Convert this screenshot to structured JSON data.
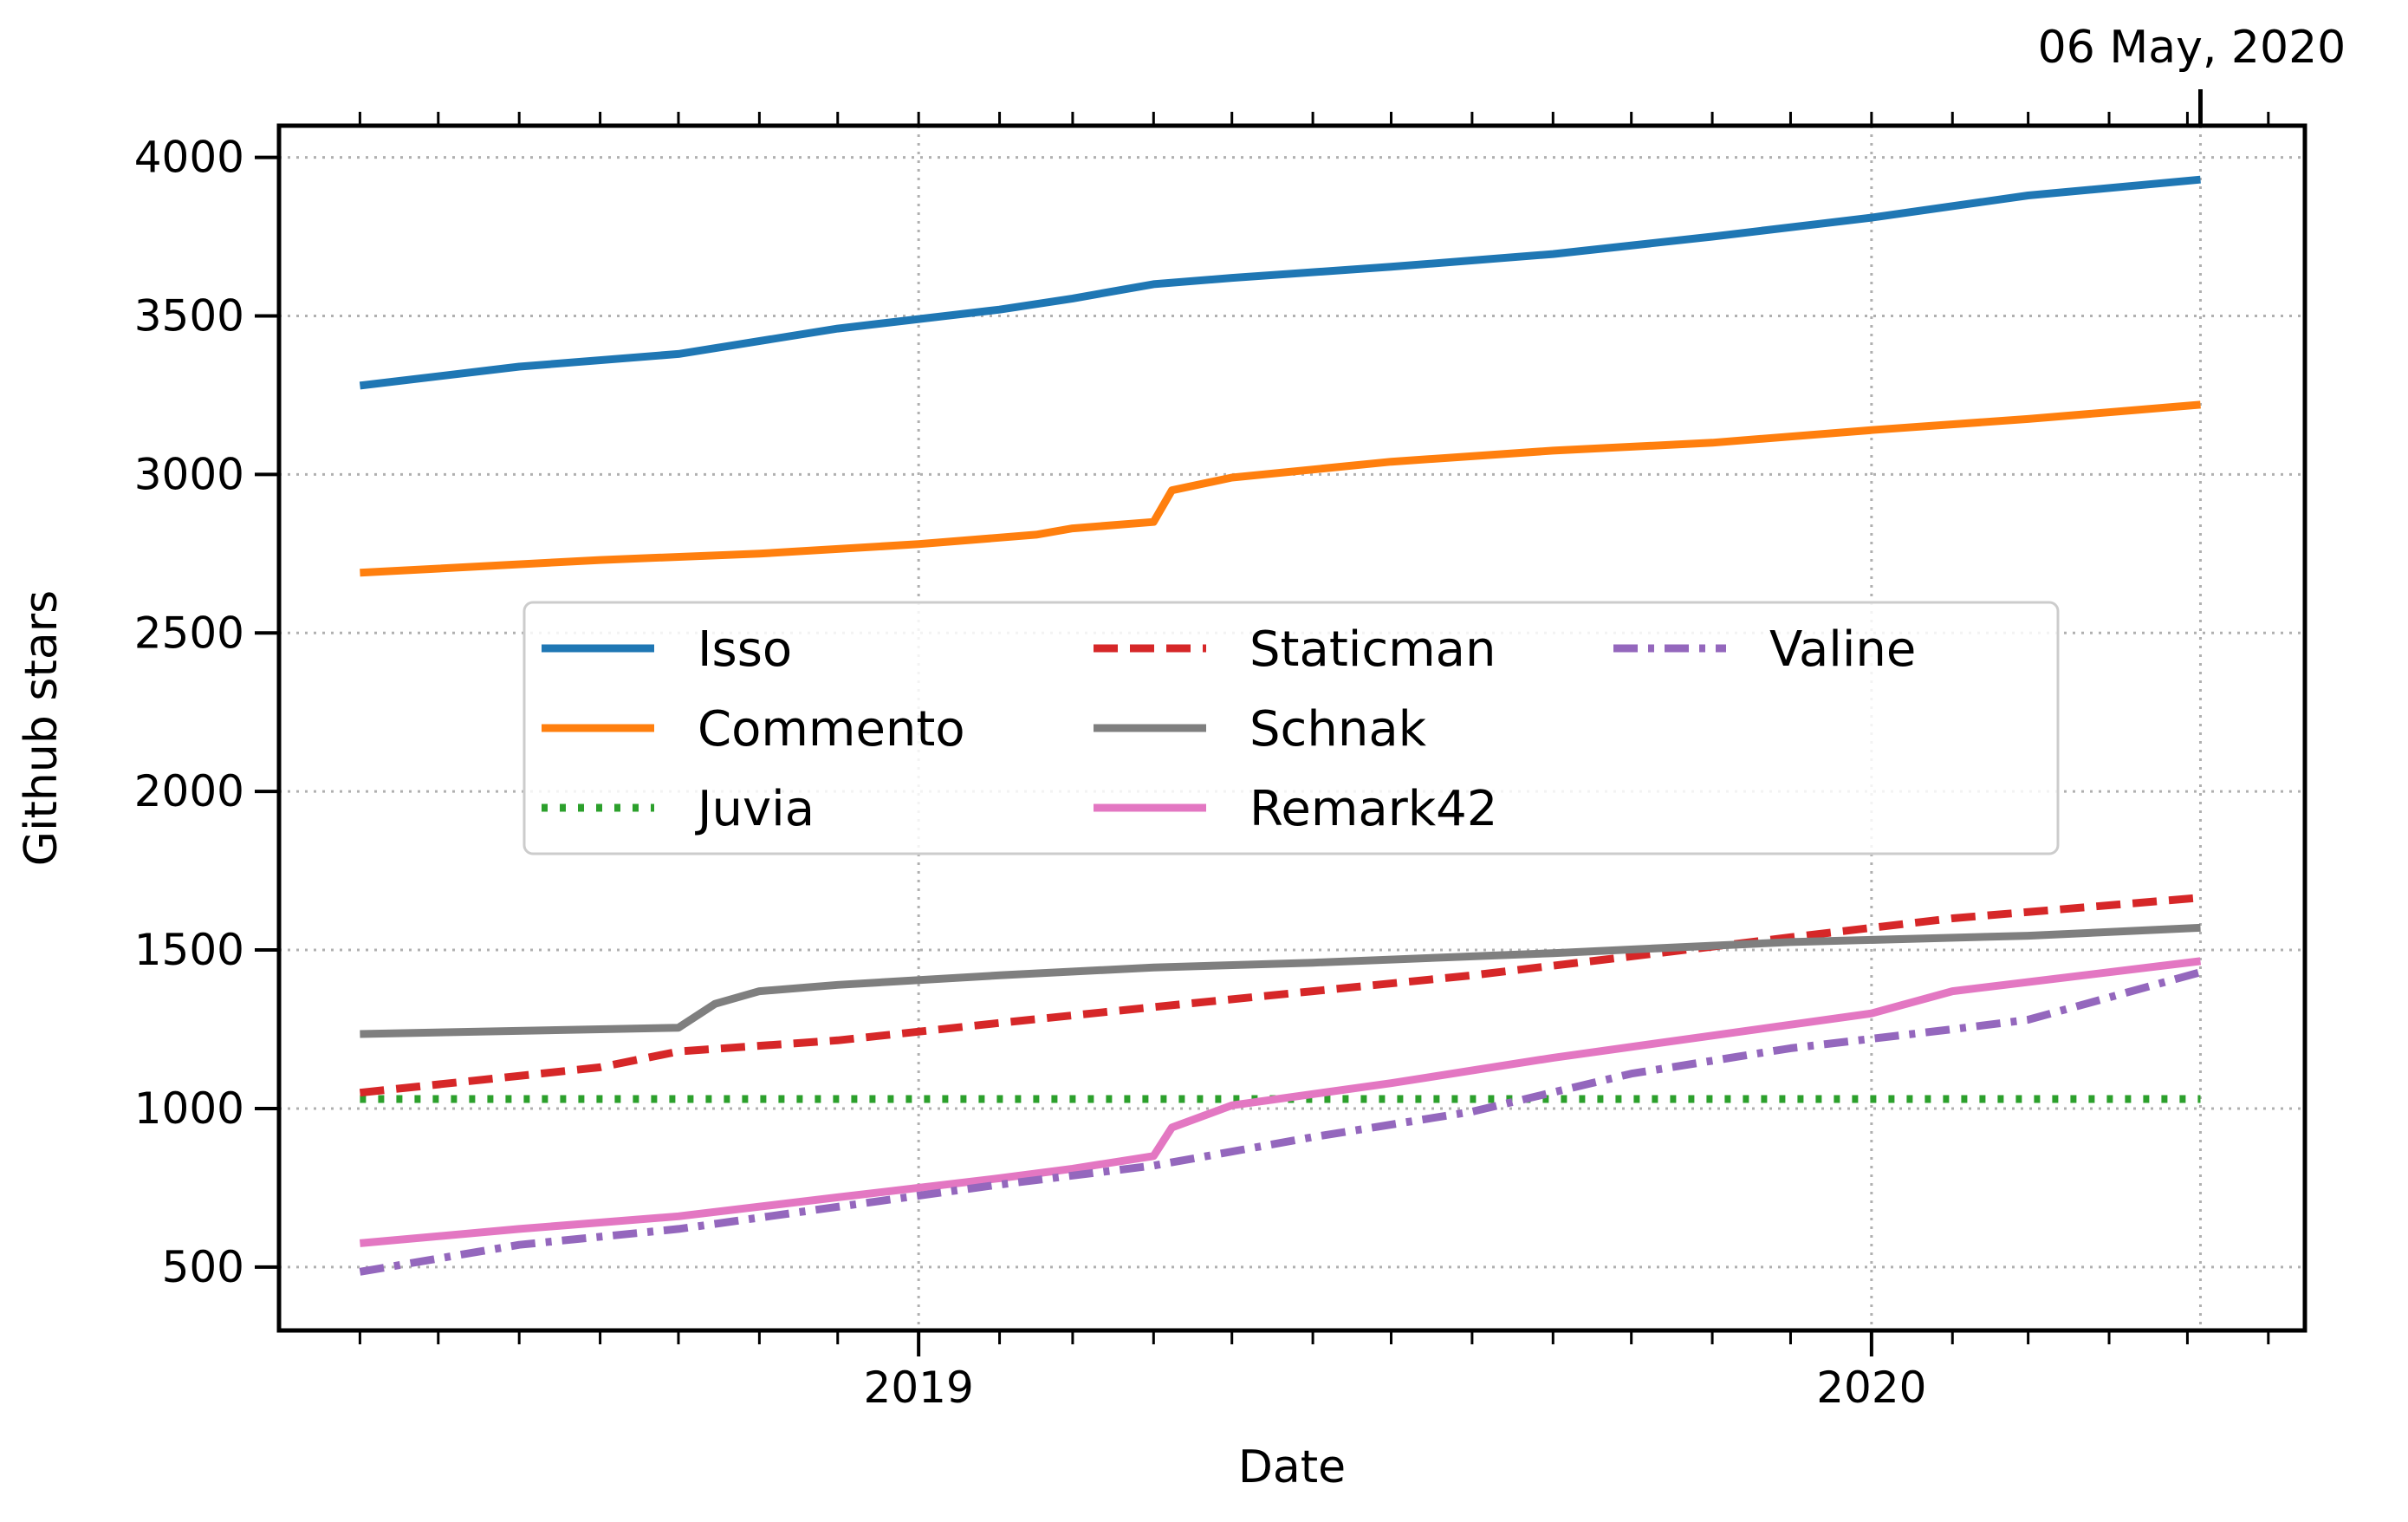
{
  "chart_data": {
    "type": "line",
    "xlabel": "Date",
    "ylabel": "Github stars",
    "annotation": "06 May, 2020",
    "annotation_date": "2020-05-06",
    "xlim": [
      "2018-05-01",
      "2020-06-15"
    ],
    "ylim": [
      300,
      4100
    ],
    "grid": true,
    "legend_position": "upper-center",
    "x_ticks": [
      {
        "date": "2019-01-01",
        "label": "2019"
      },
      {
        "date": "2020-01-01",
        "label": "2020"
      }
    ],
    "y_ticks": [
      500,
      1000,
      1500,
      2000,
      2500,
      3000,
      3500,
      4000
    ],
    "series": [
      {
        "name": "Isso",
        "color": "#1f77b4",
        "dash": "solid",
        "points": [
          [
            "2018-06-01",
            3280
          ],
          [
            "2018-08-01",
            3340
          ],
          [
            "2018-10-01",
            3380
          ],
          [
            "2018-12-01",
            3460
          ],
          [
            "2019-02-01",
            3520
          ],
          [
            "2019-03-01",
            3555
          ],
          [
            "2019-04-01",
            3600
          ],
          [
            "2019-05-01",
            3620
          ],
          [
            "2019-07-01",
            3655
          ],
          [
            "2019-09-01",
            3695
          ],
          [
            "2019-11-01",
            3750
          ],
          [
            "2020-01-01",
            3810
          ],
          [
            "2020-03-01",
            3880
          ],
          [
            "2020-05-06",
            3930
          ]
        ]
      },
      {
        "name": "Commento",
        "color": "#ff7f0e",
        "dash": "solid",
        "points": [
          [
            "2018-06-01",
            2690
          ],
          [
            "2018-09-01",
            2730
          ],
          [
            "2018-11-01",
            2750
          ],
          [
            "2019-01-01",
            2780
          ],
          [
            "2019-02-15",
            2810
          ],
          [
            "2019-03-01",
            2830
          ],
          [
            "2019-04-01",
            2850
          ],
          [
            "2019-04-08",
            2950
          ],
          [
            "2019-05-01",
            2990
          ],
          [
            "2019-07-01",
            3040
          ],
          [
            "2019-09-01",
            3075
          ],
          [
            "2019-11-01",
            3100
          ],
          [
            "2020-01-01",
            3140
          ],
          [
            "2020-03-01",
            3175
          ],
          [
            "2020-05-06",
            3220
          ]
        ]
      },
      {
        "name": "Juvia",
        "color": "#2ca02c",
        "dash": "dot",
        "points": [
          [
            "2018-06-01",
            1030
          ],
          [
            "2020-05-06",
            1030
          ]
        ]
      },
      {
        "name": "Staticman",
        "color": "#d62728",
        "dash": "dash",
        "points": [
          [
            "2018-06-01",
            1050
          ],
          [
            "2018-09-01",
            1130
          ],
          [
            "2018-10-01",
            1180
          ],
          [
            "2018-12-01",
            1215
          ],
          [
            "2019-02-01",
            1270
          ],
          [
            "2019-04-01",
            1320
          ],
          [
            "2019-06-01",
            1370
          ],
          [
            "2019-08-01",
            1420
          ],
          [
            "2019-10-01",
            1480
          ],
          [
            "2019-12-01",
            1540
          ],
          [
            "2020-02-01",
            1600
          ],
          [
            "2020-05-06",
            1665
          ]
        ]
      },
      {
        "name": "Schnak",
        "color": "#7f7f7f",
        "dash": "solid",
        "points": [
          [
            "2018-06-01",
            1235
          ],
          [
            "2018-09-01",
            1250
          ],
          [
            "2018-10-01",
            1255
          ],
          [
            "2018-10-15",
            1330
          ],
          [
            "2018-11-01",
            1370
          ],
          [
            "2018-12-01",
            1390
          ],
          [
            "2019-02-01",
            1420
          ],
          [
            "2019-04-01",
            1445
          ],
          [
            "2019-06-01",
            1460
          ],
          [
            "2019-09-01",
            1490
          ],
          [
            "2019-12-01",
            1525
          ],
          [
            "2020-03-01",
            1545
          ],
          [
            "2020-05-06",
            1570
          ]
        ]
      },
      {
        "name": "Remark42",
        "color": "#e377c2",
        "dash": "solid",
        "points": [
          [
            "2018-06-01",
            575
          ],
          [
            "2018-08-01",
            620
          ],
          [
            "2018-10-01",
            660
          ],
          [
            "2018-12-01",
            720
          ],
          [
            "2019-02-01",
            780
          ],
          [
            "2019-03-01",
            810
          ],
          [
            "2019-04-01",
            850
          ],
          [
            "2019-04-08",
            940
          ],
          [
            "2019-05-01",
            1010
          ],
          [
            "2019-07-01",
            1080
          ],
          [
            "2019-09-01",
            1160
          ],
          [
            "2019-11-01",
            1230
          ],
          [
            "2020-01-01",
            1300
          ],
          [
            "2020-02-01",
            1370
          ],
          [
            "2020-05-06",
            1465
          ]
        ]
      },
      {
        "name": "Valine",
        "color": "#9467bd",
        "dash": "dashdot",
        "points": [
          [
            "2018-06-01",
            485
          ],
          [
            "2018-08-01",
            570
          ],
          [
            "2018-10-01",
            620
          ],
          [
            "2018-12-01",
            690
          ],
          [
            "2019-02-01",
            760
          ],
          [
            "2019-04-01",
            820
          ],
          [
            "2019-06-01",
            910
          ],
          [
            "2019-08-01",
            990
          ],
          [
            "2019-10-01",
            1110
          ],
          [
            "2019-12-01",
            1190
          ],
          [
            "2020-02-01",
            1250
          ],
          [
            "2020-03-01",
            1280
          ],
          [
            "2020-05-06",
            1430
          ]
        ]
      }
    ]
  }
}
